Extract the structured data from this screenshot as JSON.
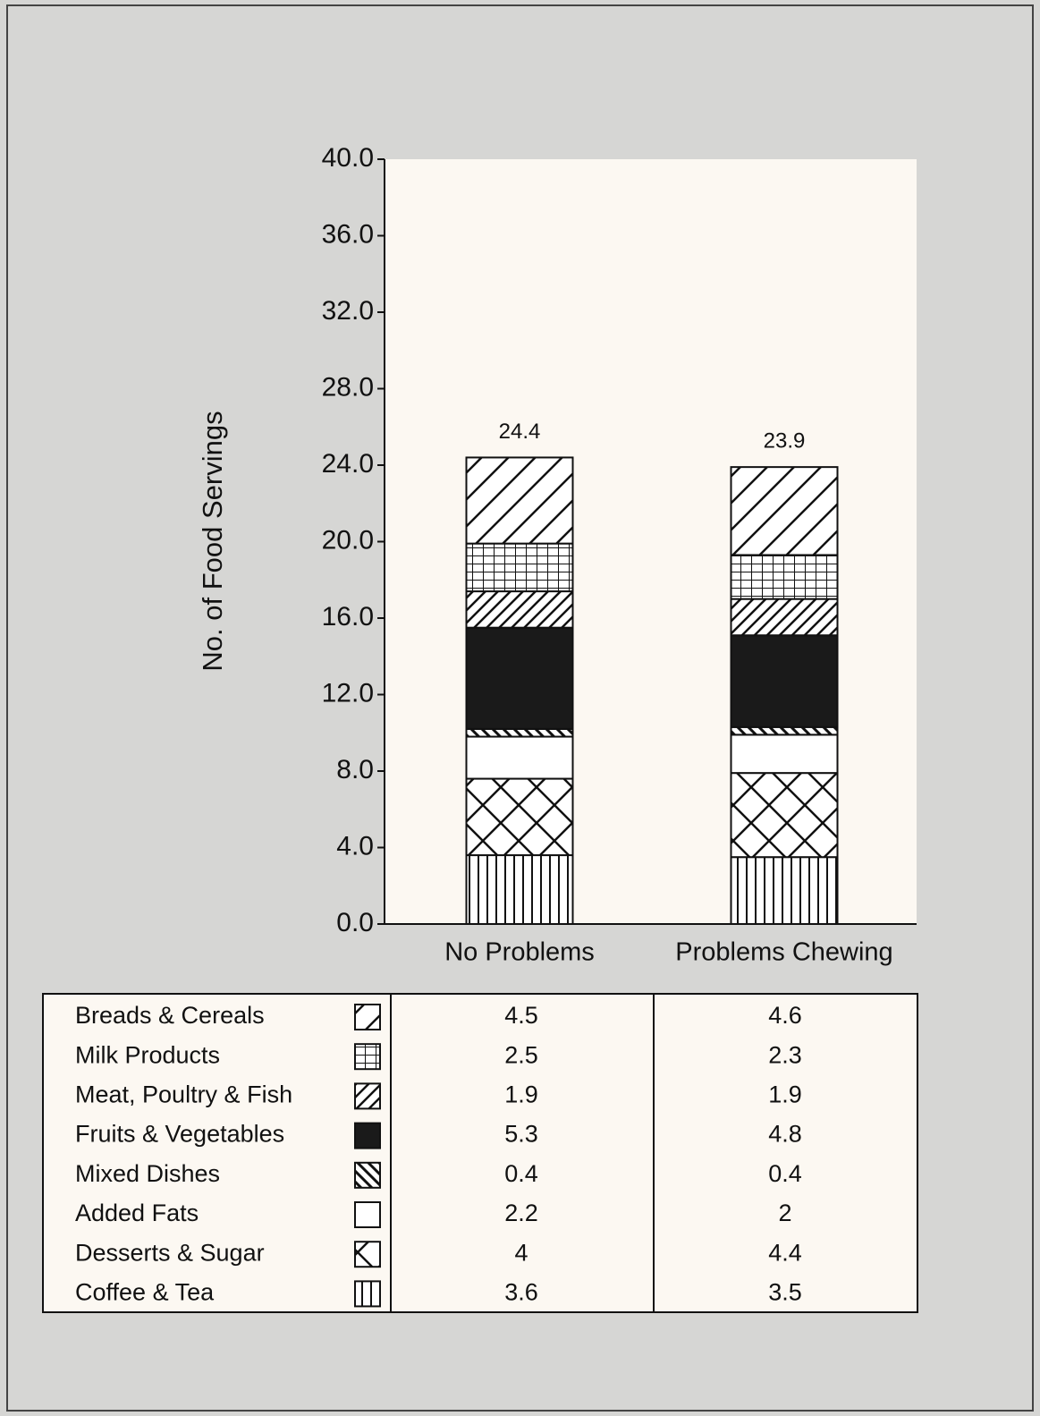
{
  "chart_data": {
    "type": "stacked-bar",
    "ylabel": "No. of Food Servings",
    "categories": [
      "No Problems",
      "Problems Chewing"
    ],
    "ylim": [
      0,
      40
    ],
    "yticks": [
      {
        "value": 0,
        "label": "0.0"
      },
      {
        "value": 4,
        "label": "4.0"
      },
      {
        "value": 8,
        "label": "8.0"
      },
      {
        "value": 12,
        "label": "12.0"
      },
      {
        "value": 16,
        "label": "16.0"
      },
      {
        "value": 20,
        "label": "20.0"
      },
      {
        "value": 24,
        "label": "24.0"
      },
      {
        "value": 28,
        "label": "28.0"
      },
      {
        "value": 32,
        "label": "32.0"
      },
      {
        "value": 36,
        "label": "36.0"
      },
      {
        "value": 40,
        "label": "40.0"
      }
    ],
    "totals": [
      24.4,
      23.9
    ],
    "series": [
      {
        "name": "Breads & Cereals",
        "pattern": "diagonal",
        "values": [
          4.5,
          4.6
        ]
      },
      {
        "name": "Milk Products",
        "pattern": "grid",
        "values": [
          2.5,
          2.3
        ]
      },
      {
        "name": "Meat, Poultry & Fish",
        "pattern": "dense-diagonal",
        "values": [
          1.9,
          1.9
        ]
      },
      {
        "name": "Fruits & Vegetables",
        "pattern": "solid",
        "values": [
          5.3,
          4.8
        ]
      },
      {
        "name": "Mixed Dishes",
        "pattern": "back-diagonal",
        "values": [
          0.4,
          0.4
        ]
      },
      {
        "name": "Added Fats",
        "pattern": "none",
        "values": [
          2.2,
          2.0
        ]
      },
      {
        "name": "Desserts & Sugar",
        "pattern": "crosshatch",
        "values": [
          4.0,
          4.4
        ]
      },
      {
        "name": "Coffee & Tea",
        "pattern": "vertical",
        "values": [
          3.6,
          3.5
        ]
      }
    ]
  }
}
